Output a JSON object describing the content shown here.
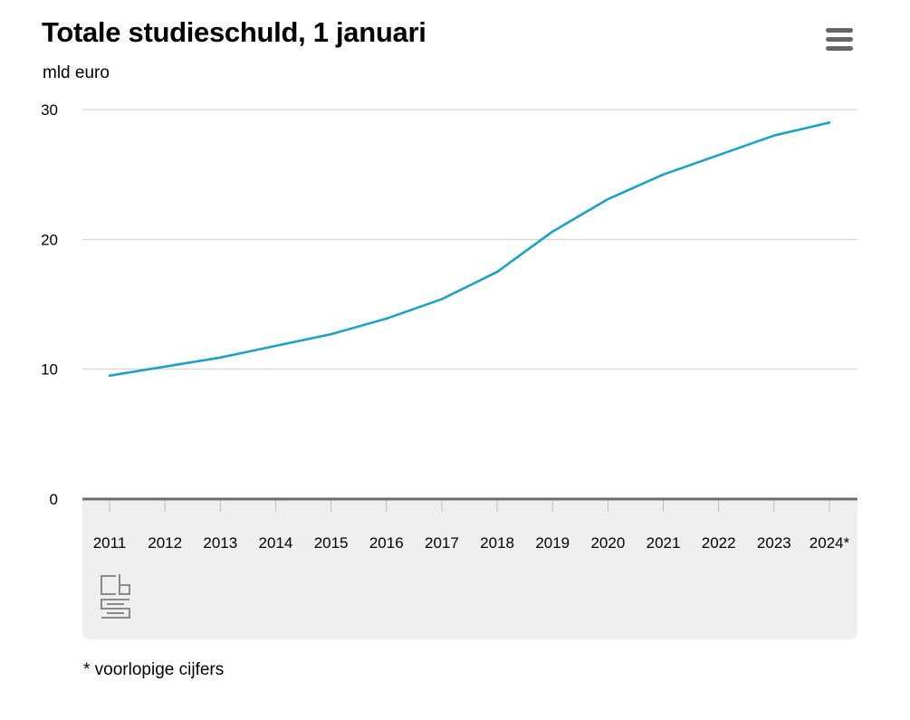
{
  "header": {
    "title": "Totale studieschuld, 1 januari",
    "unit": "mld euro",
    "menu_icon": "hamburger-menu-icon"
  },
  "chart_data": {
    "type": "line",
    "title": "Totale studieschuld, 1 januari",
    "ylabel": "mld euro",
    "xlabel": "",
    "categories": [
      "2011",
      "2012",
      "2013",
      "2014",
      "2015",
      "2016",
      "2017",
      "2018",
      "2019",
      "2020",
      "2021",
      "2022",
      "2023",
      "2024*"
    ],
    "series": [
      {
        "values": [
          9.5,
          10.2,
          10.9,
          11.8,
          12.7,
          13.9,
          15.4,
          17.5,
          20.6,
          23.1,
          25.0,
          26.5,
          28.0,
          29.0
        ]
      }
    ],
    "yticks": [
      0,
      10,
      20,
      30
    ],
    "ylim": [
      0,
      30
    ],
    "grid": true,
    "line_color": "#1aa3c8",
    "logo": "cbs"
  },
  "footnote": "* voorlopige cijfers"
}
